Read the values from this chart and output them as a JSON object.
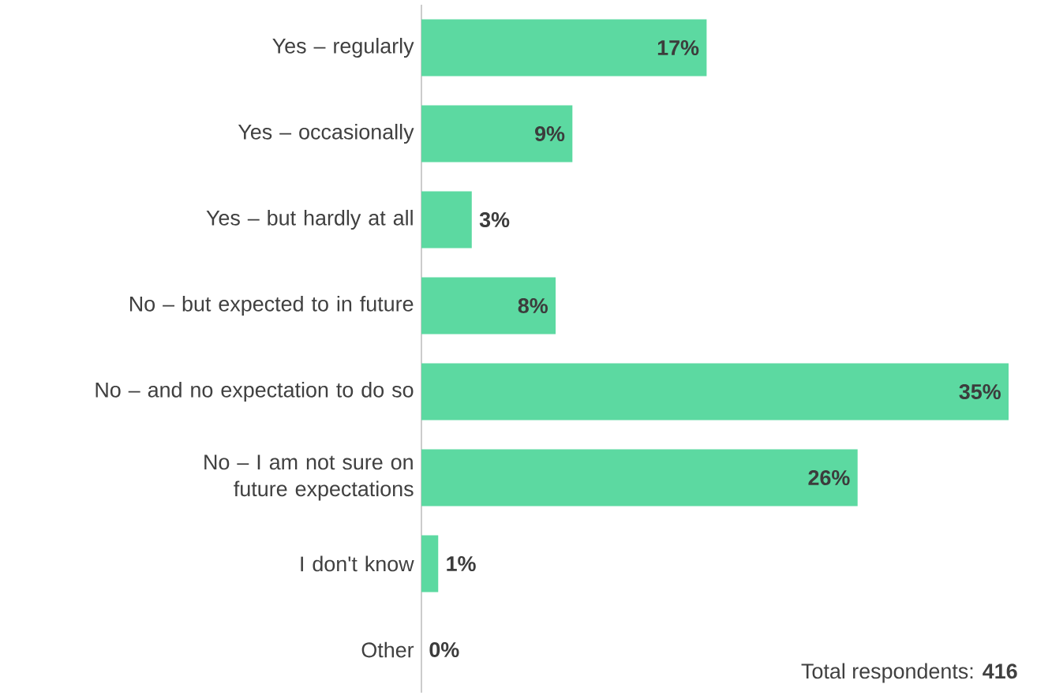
{
  "chart_data": {
    "type": "bar",
    "orientation": "horizontal",
    "categories": [
      "Yes – regularly",
      "Yes – occasionally",
      "Yes – but hardly at all",
      "No – but expected to in future",
      "No – and no expectation to do so",
      "No – I am not sure on future expectations",
      "I don't know",
      "Other"
    ],
    "values": [
      17,
      9,
      3,
      8,
      35,
      26,
      1,
      0
    ],
    "value_labels": [
      "17%",
      "9%",
      "3%",
      "8%",
      "35%",
      "26%",
      "1%",
      "0%"
    ],
    "color": "#5cd9a1",
    "annotations": [
      "Total respondents: **416**"
    ]
  }
}
